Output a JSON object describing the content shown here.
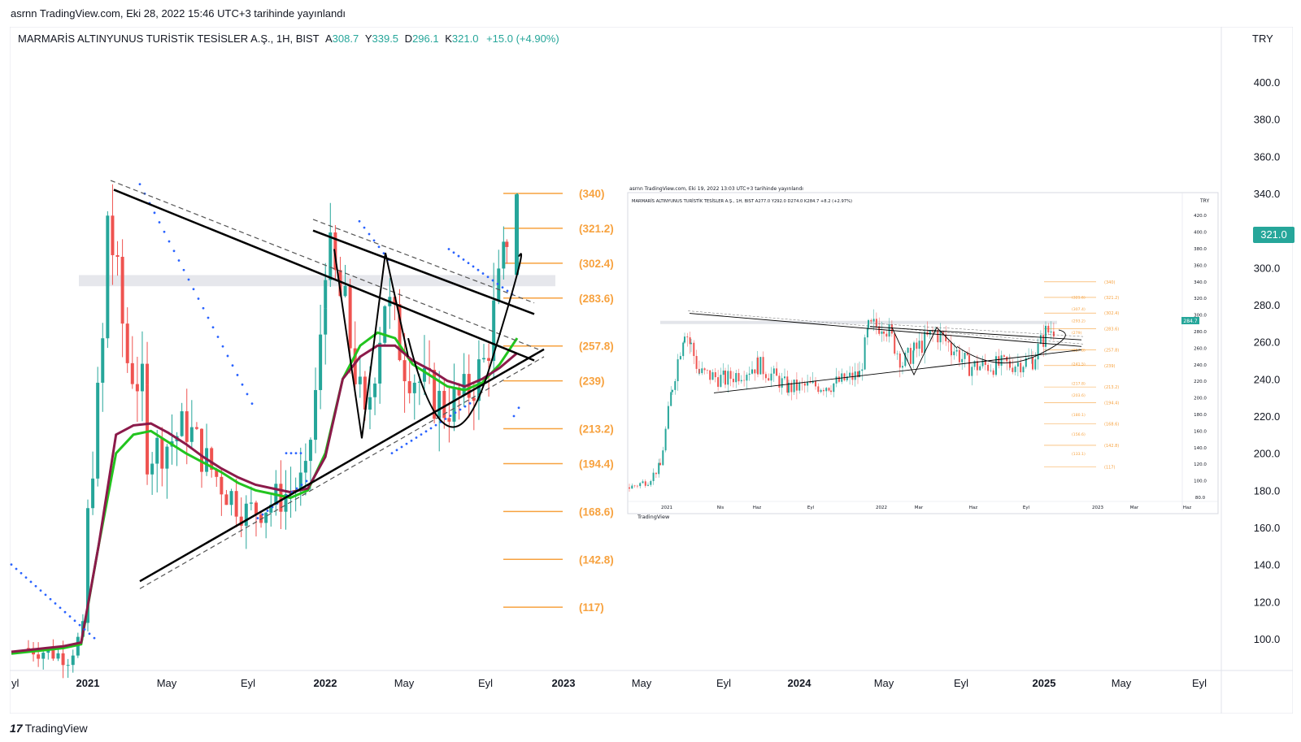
{
  "publication_line": "asrnn TradingView.com, Eki 28, 2022 15:46 UTC+3 tarihinde yayınlandı",
  "legend": {
    "symbol": "MARMARİS ALTINYUNUS TURİSTİK TESİSLER A.Ş., 1H, BIST",
    "open_label": "A",
    "open_value": "308.7",
    "high_label": "Y",
    "high_value": "339.5",
    "low_label": "D",
    "low_value": "296.1",
    "close_label": "K",
    "close_value": "321.0",
    "change": "+15.0 (+4.90%)"
  },
  "currency": "TRY",
  "last_price": "321.0",
  "brand": {
    "logo": "17",
    "name": "TradingView"
  },
  "colors": {
    "up": "#26a69a",
    "down": "#ef5350",
    "fib": "#f7a23f",
    "ma_green": "#22c41f",
    "ma_maroon": "#8b1a4a",
    "psar": "#2962ff",
    "accent": "#26a69a"
  },
  "chart_data": [
    {
      "type": "candlestick",
      "interval": "1W",
      "y_axis": {
        "ticks": [
          "100.0",
          "120.0",
          "140.0",
          "160.0",
          "180.0",
          "200.0",
          "220.0",
          "240.0",
          "260.0",
          "280.0",
          "300.0",
          "320.0",
          "340.0",
          "360.0",
          "380.0",
          "400.0"
        ],
        "range": [
          82,
          420
        ],
        "position": "right"
      },
      "x_axis": {
        "labels": [
          "yl",
          "2021",
          "May",
          "Eyl",
          "2022",
          "May",
          "Eyl",
          "2023",
          "May",
          "Eyl",
          "2024",
          "May",
          "Eyl",
          "2025",
          "May",
          "Eyl"
        ],
        "bold": [
          "2021",
          "2022",
          "2023",
          "2024",
          "2025"
        ]
      },
      "fib_levels": [
        "(340)",
        "(321.2)",
        "(302.4)",
        "(283.6)",
        "(257.8)",
        "(239)",
        "(213.2)",
        "(194.4)",
        "(168.6)",
        "(142.8)",
        "(117)"
      ],
      "fib_values": [
        340,
        321.2,
        302.4,
        283.6,
        257.8,
        239,
        213.2,
        194.4,
        168.6,
        142.8,
        117
      ],
      "resistance_zone": [
        290,
        296
      ],
      "close_path": [
        [
          "2020-10",
          95
        ],
        [
          "2020-11",
          93
        ],
        [
          "2020-12",
          90
        ],
        [
          "2021-01",
          108
        ],
        [
          "2021-01",
          165
        ],
        [
          "2021-02",
          290
        ],
        [
          "2021-02",
          330
        ],
        [
          "2021-03",
          250
        ],
        [
          "2021-04",
          230
        ],
        [
          "2021-04",
          200
        ],
        [
          "2021-05",
          205
        ],
        [
          "2021-06",
          215
        ],
        [
          "2021-07",
          195
        ],
        [
          "2021-08",
          180
        ],
        [
          "2021-09",
          168
        ],
        [
          "2021-10",
          172
        ],
        [
          "2021-11",
          178
        ],
        [
          "2021-12",
          185
        ],
        [
          "2022-01",
          280
        ],
        [
          "2022-01",
          310
        ],
        [
          "2022-02",
          275
        ],
        [
          "2022-03",
          215
        ],
        [
          "2022-04",
          285
        ],
        [
          "2022-05",
          250
        ],
        [
          "2022-06",
          235
        ],
        [
          "2022-07",
          225
        ],
        [
          "2022-08",
          230
        ],
        [
          "2022-09",
          248
        ],
        [
          "2022-10",
          300
        ],
        [
          "2022-10",
          321
        ]
      ],
      "moving_averages": [
        {
          "name": "",
          "color": "#22c41f",
          "values": [
            92,
            93,
            94,
            95,
            97,
            150,
            200,
            210,
            212,
            206,
            200,
            195,
            190,
            184,
            180,
            178,
            176,
            180,
            200,
            240,
            258,
            265,
            262,
            248,
            242,
            236,
            234,
            238,
            248,
            262
          ]
        },
        {
          "name": "",
          "color": "#8b1a4a",
          "values": [
            93,
            94,
            95,
            96,
            98,
            150,
            210,
            215,
            216,
            211,
            205,
            198,
            192,
            187,
            183,
            181,
            179,
            181,
            198,
            240,
            252,
            258,
            258,
            250,
            245,
            239,
            236,
            240,
            246,
            254
          ]
        }
      ],
      "trendlines": [
        {
          "name": "upper",
          "from": [
            "2021-02",
            342
          ],
          "to": [
            "2022-10",
            255
          ]
        },
        {
          "name": "lower",
          "from": [
            "2021-04",
            130
          ],
          "to": [
            "2022-10",
            250
          ]
        },
        {
          "name": "channel-top",
          "from": [
            "2022-01",
            323
          ],
          "to": [
            "2022-10",
            271
          ]
        }
      ],
      "last": {
        "open": 308.7,
        "high": 339.5,
        "low": 296.1,
        "close": 321.0,
        "change": 15.0,
        "change_pct": 4.9
      }
    },
    {
      "type": "candlestick",
      "inset": true,
      "publication_line": "asrnn TradingView.com, Eki 19, 2022 13:03 UTC+3 tarihinde yayınlandı",
      "legend": "MARMARİS ALTINYUNUS TURİSTİK TESİSLER A.Ş., 1H, BIST  A277.0  Y292.0  D274.0  K284.7  +8.2 (+2.97%)",
      "currency": "TRY",
      "last_price": "284.7",
      "brand": "TradingView",
      "y_axis": {
        "ticks": [
          "80.0",
          "100.0",
          "120.0",
          "140.0",
          "160.0",
          "180.0",
          "200.0",
          "220.0",
          "240.0",
          "260.0",
          "280.0",
          "300.0",
          "320.0",
          "340.0",
          "360.0",
          "380.0",
          "400.0",
          "420.0"
        ],
        "range": [
          78,
          430
        ]
      },
      "x_axis": {
        "labels": [
          "2021",
          "Nis",
          "Haz",
          "Eyl",
          "2022",
          "Mar",
          "Haz",
          "Eyl",
          "2023",
          "Mar",
          "Haz"
        ]
      },
      "fib_levels": [
        "(340)",
        "(321.2)",
        "(302.4)",
        "(283.6)",
        "(257.8)",
        "(239)",
        "(213.2)",
        "(194.4)",
        "(168.6)",
        "(142.8)",
        "(117)"
      ],
      "fib_values": [
        340,
        321.2,
        302.4,
        283.6,
        257.8,
        239,
        213.2,
        194.4,
        168.6,
        142.8,
        117
      ],
      "fib_levels_left": [
        "(321.6)",
        "(307.4)",
        "(293.2)",
        "(279)",
        "(257.8)",
        "(241.5)",
        "(217.8)",
        "(203.6)",
        "(180.1)",
        "(156.6)",
        "(133.1)"
      ],
      "fib_values_left": [
        321.6,
        307.4,
        293.2,
        279,
        257.8,
        241.5,
        217.8,
        203.6,
        180.1,
        156.6,
        133.1
      ],
      "last": {
        "open": 277.0,
        "high": 292.0,
        "low": 274.0,
        "close": 284.7,
        "change": 8.2,
        "change_pct": 2.97
      }
    }
  ]
}
